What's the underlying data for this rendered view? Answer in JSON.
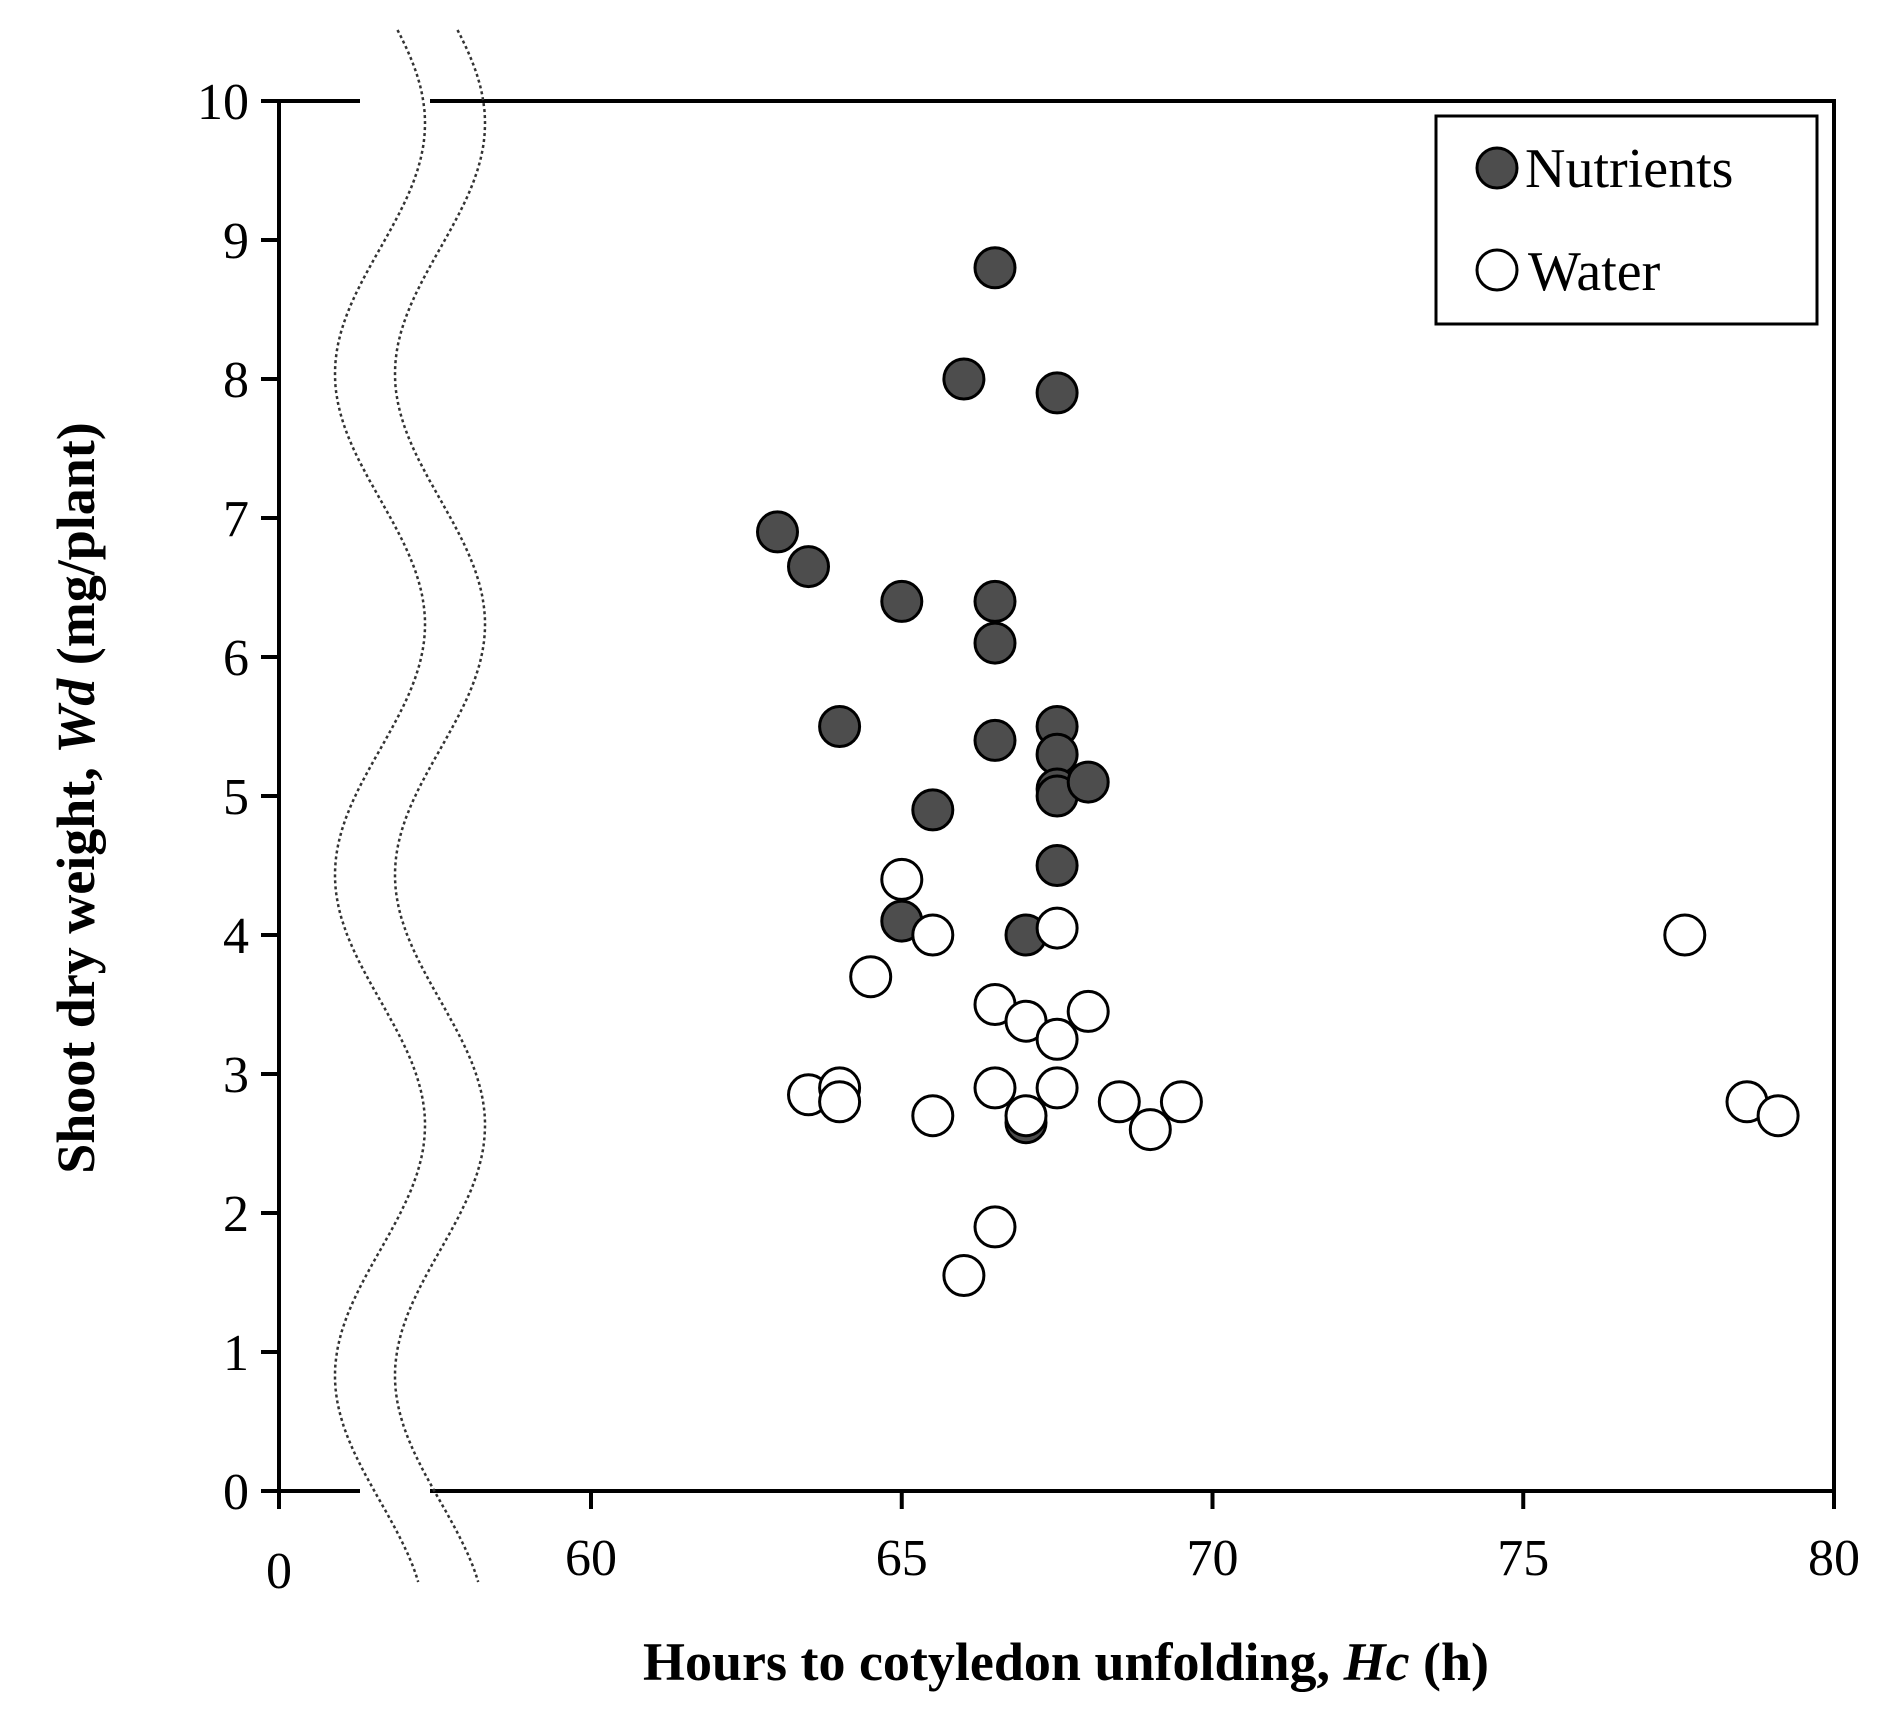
{
  "chart_data": {
    "type": "scatter",
    "title": "",
    "xlabel": {
      "prefix": "Hours to cotyledon unfolding, ",
      "symbol": "Hc",
      "suffix": " (h)"
    },
    "ylabel": {
      "prefix": "Shoot dry weight, ",
      "symbol": "Wd",
      "suffix": " (mg/plant)"
    },
    "xlim": [
      0,
      80
    ],
    "axis_break": [
      0,
      55
    ],
    "ylim": [
      0,
      10
    ],
    "x_ticks": [
      0,
      60,
      65,
      70,
      75,
      80
    ],
    "x_tick_labels": [
      "0",
      "60",
      "65",
      "70",
      "75",
      "80"
    ],
    "y_ticks": [
      0,
      1,
      2,
      3,
      4,
      5,
      6,
      7,
      8,
      9,
      10
    ],
    "y_tick_labels": [
      "0",
      "1",
      "2",
      "3",
      "4",
      "5",
      "6",
      "7",
      "8",
      "9",
      "10"
    ],
    "legend_position": "top-right",
    "series": [
      {
        "name": "Nutrients",
        "color": "#4d4d4d",
        "points": [
          [
            66.5,
            8.8
          ],
          [
            66.0,
            8.0
          ],
          [
            67.5,
            7.9
          ],
          [
            63.0,
            6.9
          ],
          [
            63.5,
            6.65
          ],
          [
            65.0,
            6.4
          ],
          [
            66.5,
            6.4
          ],
          [
            66.5,
            6.1
          ],
          [
            64.0,
            5.5
          ],
          [
            66.5,
            5.4
          ],
          [
            67.5,
            5.5
          ],
          [
            67.5,
            5.3
          ],
          [
            67.5,
            5.05
          ],
          [
            67.5,
            5.0
          ],
          [
            68.0,
            5.1
          ],
          [
            65.5,
            4.9
          ],
          [
            67.5,
            4.5
          ],
          [
            65.0,
            4.1
          ],
          [
            67.0,
            4.0
          ],
          [
            67.0,
            2.65
          ]
        ]
      },
      {
        "name": "Water",
        "color": "#ffffff",
        "points": [
          [
            65.0,
            4.4
          ],
          [
            65.5,
            4.0
          ],
          [
            67.5,
            4.05
          ],
          [
            64.5,
            3.7
          ],
          [
            66.5,
            3.5
          ],
          [
            67.0,
            3.38
          ],
          [
            67.5,
            3.25
          ],
          [
            68.0,
            3.45
          ],
          [
            63.5,
            2.85
          ],
          [
            64.0,
            2.9
          ],
          [
            64.0,
            2.8
          ],
          [
            65.5,
            2.7
          ],
          [
            66.5,
            2.9
          ],
          [
            67.0,
            2.7
          ],
          [
            67.5,
            2.9
          ],
          [
            68.5,
            2.8
          ],
          [
            69.0,
            2.6
          ],
          [
            69.5,
            2.8
          ],
          [
            66.5,
            1.9
          ],
          [
            66.0,
            1.55
          ],
          [
            77.6,
            4.0
          ],
          [
            78.6,
            2.8
          ],
          [
            79.1,
            2.7
          ]
        ]
      }
    ]
  }
}
